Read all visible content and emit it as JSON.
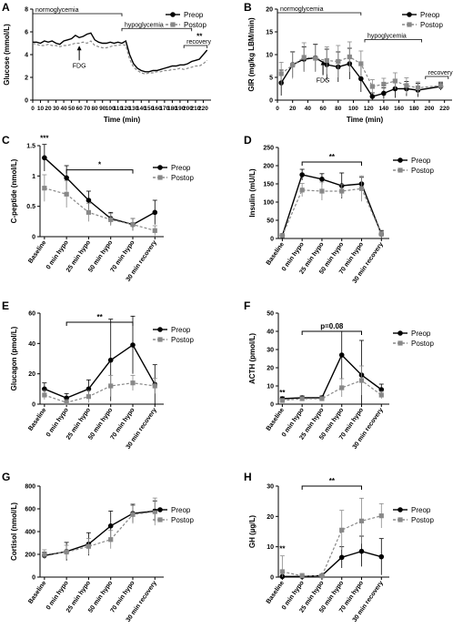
{
  "figure": {
    "series_names": [
      "Preop",
      "Postop"
    ],
    "colors": {
      "preop": "#000000",
      "postop": "#888888"
    }
  },
  "chart_data": [
    {
      "panel": "A",
      "type": "line",
      "ylabel": "Glucose (mmol/L)",
      "xlabel": "Time (min)",
      "xlim": [
        0,
        230
      ],
      "ylim": [
        0,
        8
      ],
      "xticks": [
        0,
        10,
        20,
        30,
        40,
        50,
        60,
        70,
        80,
        90,
        100,
        110,
        120,
        130,
        140,
        150,
        160,
        170,
        180,
        190,
        200,
        210,
        220
      ],
      "yticks": [
        0,
        2,
        4,
        6,
        8
      ],
      "legend": "top-right",
      "annotations": [
        {
          "text": "normoglycemia",
          "bracket": [
            0,
            115
          ],
          "y": 7.6
        },
        {
          "text": "hypoglycemia",
          "bracket": [
            115,
            205
          ],
          "y": 6.3
        },
        {
          "text": "recovery",
          "bracket": [
            195,
            225
          ],
          "y": 4.8
        },
        {
          "text": "FDG",
          "arrow_x": 60,
          "y": 3.5
        },
        {
          "text": "**",
          "x": 215,
          "y": 5.4
        }
      ],
      "series": [
        {
          "name": "Preop",
          "x": [
            0,
            5,
            10,
            15,
            20,
            25,
            30,
            35,
            40,
            45,
            50,
            55,
            60,
            65,
            70,
            75,
            80,
            85,
            90,
            95,
            100,
            105,
            110,
            115,
            120,
            125,
            130,
            135,
            140,
            145,
            150,
            155,
            160,
            165,
            170,
            175,
            180,
            185,
            190,
            195,
            200,
            205,
            210,
            215,
            220,
            225
          ],
          "y": [
            5.1,
            5.1,
            5.0,
            5.2,
            5.1,
            5.2,
            5.0,
            4.9,
            5.2,
            5.3,
            5.4,
            5.7,
            5.5,
            5.6,
            5.8,
            5.9,
            5.3,
            5.1,
            5.0,
            5.0,
            5.1,
            5.0,
            5.1,
            5.0,
            5.2,
            4.0,
            3.2,
            2.8,
            2.6,
            2.5,
            2.5,
            2.6,
            2.6,
            2.7,
            2.8,
            2.9,
            3.0,
            3.0,
            3.1,
            3.1,
            3.2,
            3.4,
            3.5,
            3.6,
            4.0,
            4.4
          ]
        },
        {
          "name": "Postop",
          "x": [
            0,
            5,
            10,
            15,
            20,
            25,
            30,
            35,
            40,
            45,
            50,
            55,
            60,
            65,
            70,
            75,
            80,
            85,
            90,
            95,
            100,
            105,
            110,
            115,
            120,
            125,
            130,
            135,
            140,
            145,
            150,
            155,
            160,
            165,
            170,
            175,
            180,
            185,
            190,
            195,
            200,
            205,
            210,
            215,
            220,
            225
          ],
          "y": [
            5.0,
            4.9,
            4.8,
            4.8,
            4.9,
            4.8,
            4.8,
            4.7,
            4.8,
            4.8,
            4.9,
            5.0,
            5.0,
            5.1,
            5.0,
            5.2,
            4.8,
            4.7,
            4.6,
            4.6,
            4.7,
            4.8,
            4.8,
            4.9,
            4.8,
            3.6,
            2.9,
            2.6,
            2.4,
            2.3,
            2.4,
            2.4,
            2.5,
            2.5,
            2.6,
            2.6,
            2.7,
            2.7,
            2.8,
            2.7,
            2.8,
            2.9,
            3.0,
            3.0,
            3.2,
            3.5
          ]
        }
      ]
    },
    {
      "panel": "B",
      "type": "line",
      "ylabel": "GIR (mg/kg LBM/min)",
      "xlabel": "Time (min)",
      "xlim": [
        0,
        230
      ],
      "ylim": [
        0,
        20
      ],
      "xticks": [
        0,
        20,
        40,
        60,
        80,
        100,
        120,
        140,
        160,
        180,
        200,
        220
      ],
      "yticks": [
        0,
        5,
        10,
        15,
        20
      ],
      "legend": "top-right",
      "annotations": [
        {
          "text": "normoglycemia",
          "bracket": [
            0,
            110
          ],
          "y": 19.2
        },
        {
          "text": "hypoglycemia",
          "bracket": [
            115,
            190
          ],
          "y": 13.3
        },
        {
          "text": "recovery",
          "bracket": [
            195,
            225
          ],
          "y": 5.2
        },
        {
          "text": "FDG",
          "arrow_x": 60,
          "y": 5.5
        }
      ],
      "series": [
        {
          "name": "Preop",
          "x": [
            5,
            20,
            35,
            50,
            65,
            80,
            95,
            110,
            125,
            140,
            155,
            170,
            185,
            215
          ],
          "y": [
            3.8,
            7.8,
            9.0,
            9.3,
            7.8,
            7.3,
            8.0,
            4.7,
            0.8,
            1.5,
            2.5,
            2.5,
            2.2,
            3.0
          ],
          "err": [
            2.8,
            2.8,
            2.7,
            3.0,
            3.4,
            3.3,
            3.4,
            2.9,
            0.8,
            1.2,
            2.0,
            1.6,
            1.5,
            0.8
          ]
        },
        {
          "name": "Postop",
          "x": [
            5,
            20,
            35,
            50,
            65,
            80,
            95,
            110,
            125,
            140,
            155,
            170,
            185,
            215
          ],
          "y": [
            5.8,
            7.7,
            9.4,
            9.2,
            8.7,
            8.5,
            9.5,
            8.0,
            3.0,
            3.5,
            4.2,
            3.2,
            2.7,
            3.2
          ],
          "err": [
            2.5,
            3.0,
            3.2,
            3.0,
            3.0,
            3.5,
            3.3,
            2.8,
            1.5,
            1.3,
            1.8,
            1.7,
            1.3,
            0.8
          ]
        }
      ]
    },
    {
      "panel": "C",
      "type": "line",
      "ylabel": "C-peptide (nmol/L)",
      "categories": [
        "Baseline",
        "0 min hypo",
        "25 min hypo",
        "50 min hypo",
        "70 min hypo",
        "30 min recovery"
      ],
      "ylim": [
        0,
        1.5
      ],
      "yticks": [
        0,
        0.5,
        1.0,
        1.5
      ],
      "legend": "top-right",
      "annotations": [
        {
          "text": "***",
          "category": 0,
          "y": 1.58
        },
        {
          "text": "*",
          "bracket_categories": [
            1,
            4
          ],
          "y": 1.1
        }
      ],
      "series": [
        {
          "name": "Preop",
          "values": [
            1.3,
            0.97,
            0.6,
            0.3,
            0.2,
            0.4
          ],
          "err": [
            0.22,
            0.2,
            0.15,
            0.1,
            0.1,
            0.2
          ]
        },
        {
          "name": "Postop",
          "values": [
            0.8,
            0.7,
            0.4,
            0.28,
            0.2,
            0.1
          ],
          "err": [
            0.22,
            0.22,
            0.15,
            0.1,
            0.1,
            0.08
          ]
        }
      ]
    },
    {
      "panel": "D",
      "type": "line",
      "ylabel": "Insulin (mU/L)",
      "categories": [
        "Baseline",
        "0 min hypo",
        "25 min hypo",
        "50 min hypo",
        "70 min hypo",
        "30 min recovery"
      ],
      "ylim": [
        0,
        250
      ],
      "yticks": [
        0,
        50,
        100,
        150,
        200,
        250
      ],
      "legend": "top-right",
      "annotations": [
        {
          "text": "**",
          "bracket_categories": [
            1,
            4
          ],
          "y": 210
        }
      ],
      "series": [
        {
          "name": "Preop",
          "values": [
            8,
            175,
            163,
            145,
            150,
            12
          ],
          "err": [
            5,
            15,
            15,
            35,
            18,
            10
          ]
        },
        {
          "name": "Postop",
          "values": [
            8,
            133,
            130,
            130,
            137,
            12
          ],
          "err": [
            5,
            18,
            25,
            18,
            35,
            8
          ]
        }
      ]
    },
    {
      "panel": "E",
      "type": "line",
      "ylabel": "Glucagon (pmol/L)",
      "categories": [
        "Baseline",
        "0 min hypo",
        "25 min hypo",
        "50 min hypo",
        "70 min hypo",
        "30 min recovery"
      ],
      "ylim": [
        0,
        60
      ],
      "yticks": [
        0,
        20,
        40,
        60
      ],
      "legend": "top-right",
      "annotations": [
        {
          "text": "**",
          "bracket_categories": [
            1,
            4
          ],
          "y": 54
        }
      ],
      "series": [
        {
          "name": "Preop",
          "values": [
            10,
            4,
            10,
            29,
            39,
            13
          ],
          "err": [
            4,
            3,
            6,
            27,
            19,
            13
          ]
        },
        {
          "name": "Postop",
          "values": [
            6,
            1,
            5,
            12,
            14,
            12
          ],
          "err": [
            3,
            2,
            4,
            7,
            5,
            5
          ]
        }
      ]
    },
    {
      "panel": "F",
      "type": "line",
      "ylabel": "ACTH (pmol/L)",
      "categories": [
        "Baseline",
        "0 min hypo",
        "25 min hypo",
        "50 min hypo",
        "70 min hypo",
        "30 min recovery"
      ],
      "ylim": [
        0,
        50
      ],
      "yticks": [
        0,
        10,
        20,
        30,
        40,
        50
      ],
      "legend": "top-right",
      "annotations": [
        {
          "text": "**",
          "category": 0,
          "y": 5
        },
        {
          "text": "p=0.08",
          "bracket_categories": [
            1,
            4
          ],
          "y": 40
        }
      ],
      "series": [
        {
          "name": "Preop",
          "values": [
            3,
            3.5,
            3.5,
            27,
            16,
            8
          ],
          "err": [
            1,
            1,
            1,
            13,
            19,
            3
          ]
        },
        {
          "name": "Postop",
          "values": [
            2,
            3,
            3,
            9,
            13,
            5
          ],
          "err": [
            1,
            1,
            1,
            5,
            8,
            2
          ]
        }
      ]
    },
    {
      "panel": "G",
      "type": "line",
      "ylabel": "Cortisol (nmol/L)",
      "categories": [
        "Baseline",
        "0 min hypo",
        "25 min hypo",
        "50 min hypo",
        "70 min hypo",
        "30 min recovery"
      ],
      "ylim": [
        0,
        800
      ],
      "yticks": [
        0,
        200,
        400,
        600,
        800
      ],
      "legend": "top-right",
      "annotations": [],
      "series": [
        {
          "name": "Preop",
          "values": [
            190,
            225,
            290,
            450,
            560,
            580
          ],
          "err": [
            30,
            80,
            100,
            130,
            80,
            90
          ]
        },
        {
          "name": "Postop",
          "values": [
            200,
            220,
            270,
            330,
            550,
            575
          ],
          "err": [
            40,
            60,
            70,
            80,
            80,
            120
          ]
        }
      ]
    },
    {
      "panel": "H",
      "type": "line",
      "ylabel": "GH (µg/L)",
      "categories": [
        "Baseline",
        "0 min hypo",
        "25 min hypo",
        "50 min hypo",
        "70 min hypo",
        "30 min recovery"
      ],
      "ylim": [
        0,
        30
      ],
      "yticks": [
        0,
        10,
        20,
        30
      ],
      "legend": "top-right",
      "annotations": [
        {
          "text": "**",
          "category": 0,
          "y": 8.5
        },
        {
          "text": "**",
          "bracket_categories": [
            1,
            4
          ],
          "y": 30
        }
      ],
      "series": [
        {
          "name": "Preop",
          "values": [
            0.2,
            0.2,
            0.5,
            6.5,
            8.5,
            6.7
          ],
          "err": [
            0.3,
            0.3,
            0.4,
            3.5,
            5,
            6
          ]
        },
        {
          "name": "Postop",
          "values": [
            1.8,
            0.4,
            0.4,
            15.5,
            18.5,
            20.2
          ],
          "err": [
            5.2,
            0.8,
            0.5,
            6.5,
            7.5,
            4
          ]
        }
      ]
    }
  ]
}
